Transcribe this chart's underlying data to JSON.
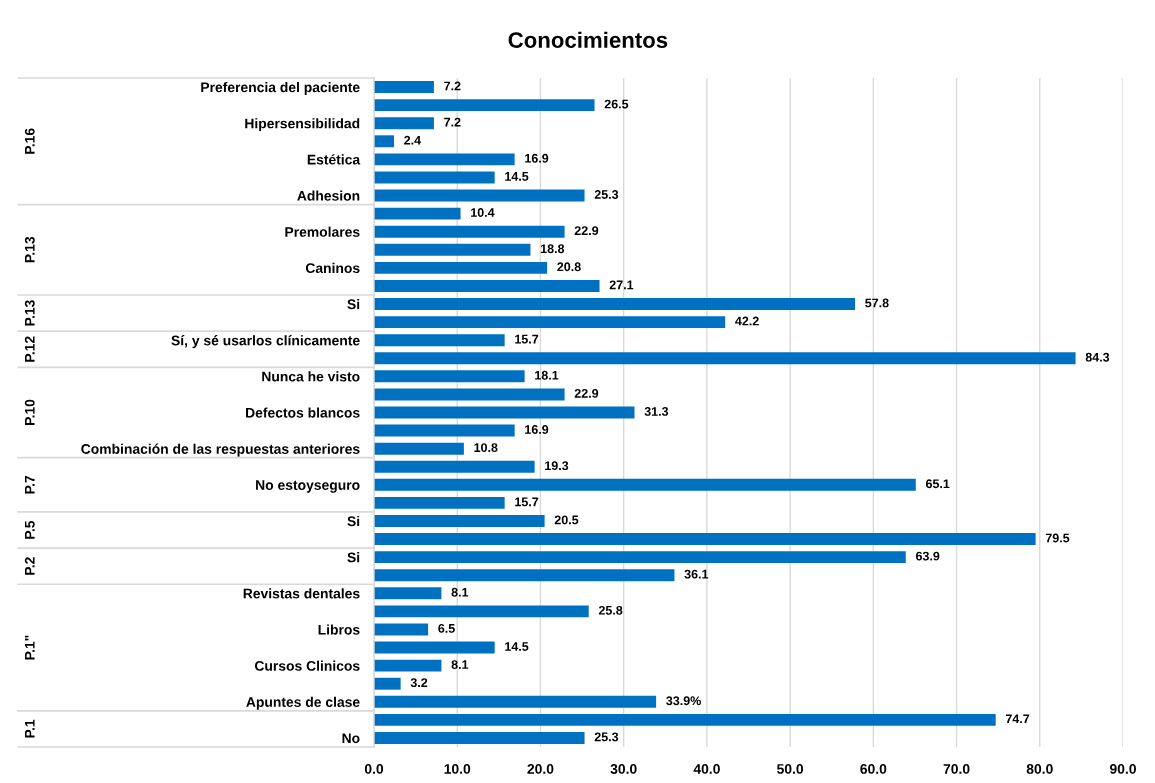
{
  "chart_data": {
    "type": "bar",
    "orientation": "horizontal",
    "title": "Conocimientos",
    "categories": [
      "Preferencia del paciente",
      null,
      "Hipersensibilidad",
      null,
      "Estética",
      null,
      "Adhesion",
      null,
      "Premolares",
      null,
      "Caninos",
      null,
      "Si",
      null,
      "Sí, y sé usarlos clínicamente",
      null,
      "Nunca he visto",
      null,
      "Defectos blancos",
      null,
      "Combinación de las respuestas anteriores",
      null,
      "No estoyseguro",
      null,
      "Si",
      null,
      "Si",
      null,
      "Revistas dentales",
      null,
      "Libros",
      null,
      "Cursos Clinicos",
      null,
      "Apuntes de clase",
      null,
      "No"
    ],
    "values": [
      7.2,
      26.5,
      7.2,
      2.4,
      16.9,
      14.5,
      25.3,
      10.4,
      22.9,
      18.8,
      20.8,
      27.1,
      57.8,
      42.2,
      15.7,
      84.3,
      18.1,
      22.9,
      31.3,
      16.9,
      10.8,
      19.3,
      65.1,
      15.7,
      20.5,
      79.5,
      63.9,
      36.1,
      8.1,
      25.8,
      6.5,
      14.5,
      8.1,
      3.2,
      33.9,
      74.7,
      25.3
    ],
    "value_labels": [
      "7.2",
      "26.5",
      "7.2",
      "2.4",
      "16.9",
      "14.5",
      "25.3",
      "10.4",
      "22.9",
      "18.8",
      "20.8",
      "27.1",
      "57.8",
      "42.2",
      "15.7",
      "84.3",
      "18.1",
      "22.9",
      "31.3",
      "16.9",
      "10.8",
      "19.3",
      "65.1",
      "15.7",
      "20.5",
      "79.5",
      "63.9",
      "36.1",
      "8.1",
      "25.8",
      "6.5",
      "14.5",
      "8.1",
      "3.2",
      "33.9%",
      "74.7",
      "25.3"
    ],
    "color": "#0070c0",
    "xlim": [
      0,
      90
    ],
    "xticks": [
      {
        "value": 0,
        "label": "0.0"
      },
      {
        "value": 10,
        "label": "10.0"
      },
      {
        "value": 20,
        "label": "20.0"
      },
      {
        "value": 30,
        "label": "30.0"
      },
      {
        "value": 40,
        "label": "40.0"
      },
      {
        "value": 50,
        "label": "50.0"
      },
      {
        "value": 60,
        "label": "60.0"
      },
      {
        "value": 70,
        "label": "70.0"
      },
      {
        "value": 80,
        "label": "80.0"
      },
      {
        "value": 90,
        "label": "90.0"
      }
    ],
    "grid": "x",
    "annotations": [
      "P.16",
      "P.13",
      "P.13",
      "P.12",
      "P.10",
      "P.7",
      "P.5",
      "P.2",
      "P.1\"",
      "P.1"
    ]
  }
}
